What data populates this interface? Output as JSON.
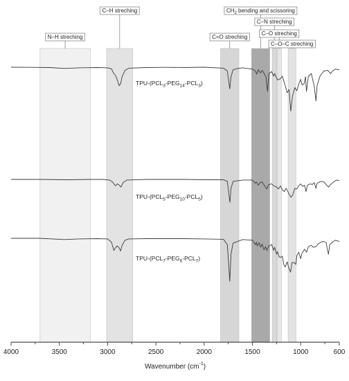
{
  "chart_data": {
    "type": "line",
    "xlabel": "Wavenumber (cm",
    "xlabel_superscript": "-1",
    "xlabel_close": ")",
    "xlim": [
      4000,
      600
    ],
    "x_reversed": true,
    "x_ticks": [
      4000,
      3500,
      3000,
      2500,
      2000,
      1500,
      1000,
      600
    ],
    "grid": false,
    "bands": [
      {
        "label": "N–H streching",
        "range": [
          3700,
          3180
        ],
        "shade": "#f1f1f1"
      },
      {
        "label": "C–H streching",
        "range": [
          3010,
          2740
        ],
        "shade": "#e3e3e3"
      },
      {
        "label": "C=O streching",
        "range": [
          1830,
          1640
        ],
        "shade": "#d6d6d6"
      },
      {
        "label_main": "CH",
        "label_sub": "2",
        "label_rest": " bending and scissoring",
        "range": [
          1510,
          1320
        ],
        "shade": "#a9a9a9"
      },
      {
        "label": "C–N streching",
        "range": [
          1295,
          1250
        ],
        "shade": "#d9d9d9"
      },
      {
        "label": "C–O streching",
        "range": [
          1245,
          1200
        ],
        "shade": "#e6e6e6"
      },
      {
        "label": "C–O–C streching",
        "range": [
          1130,
          1050
        ],
        "shade": "#e3e3e3"
      }
    ],
    "series": [
      {
        "name": "TPU-(PCL",
        "name_parts": [
          "TPU-(PCL",
          "3",
          "-PEG",
          "14",
          "-PCL",
          "3",
          ")"
        ],
        "baseline": 0,
        "points": [
          [
            4000,
            0
          ],
          [
            3800,
            0.5
          ],
          [
            3600,
            1
          ],
          [
            3450,
            4
          ],
          [
            3300,
            2
          ],
          [
            3100,
            1
          ],
          [
            3000,
            2
          ],
          [
            2960,
            5
          ],
          [
            2940,
            18
          ],
          [
            2920,
            25
          ],
          [
            2900,
            40
          ],
          [
            2880,
            58
          ],
          [
            2865,
            52
          ],
          [
            2850,
            30
          ],
          [
            2820,
            10
          ],
          [
            2780,
            3
          ],
          [
            2600,
            1
          ],
          [
            2400,
            0.5
          ],
          [
            2200,
            1
          ],
          [
            2000,
            0
          ],
          [
            1800,
            3
          ],
          [
            1760,
            12
          ],
          [
            1735,
            68
          ],
          [
            1722,
            30
          ],
          [
            1700,
            8
          ],
          [
            1650,
            4
          ],
          [
            1600,
            2
          ],
          [
            1500,
            6
          ],
          [
            1470,
            12
          ],
          [
            1455,
            22
          ],
          [
            1440,
            8
          ],
          [
            1415,
            18
          ],
          [
            1400,
            10
          ],
          [
            1390,
            14
          ],
          [
            1360,
            30
          ],
          [
            1343,
            76
          ],
          [
            1330,
            20
          ],
          [
            1300,
            14
          ],
          [
            1280,
            28
          ],
          [
            1270,
            20
          ],
          [
            1240,
            40
          ],
          [
            1210,
            36
          ],
          [
            1190,
            28
          ],
          [
            1160,
            58
          ],
          [
            1140,
            80
          ],
          [
            1120,
            70
          ],
          [
            1103,
            138
          ],
          [
            1085,
            90
          ],
          [
            1060,
            64
          ],
          [
            1040,
            74
          ],
          [
            1020,
            54
          ],
          [
            1000,
            38
          ],
          [
            985,
            56
          ],
          [
            965,
            52
          ],
          [
            950,
            30
          ],
          [
            940,
            76
          ],
          [
            920,
            28
          ],
          [
            890,
            20
          ],
          [
            860,
            60
          ],
          [
            842,
            106
          ],
          [
            830,
            58
          ],
          [
            800,
            28
          ],
          [
            760,
            12
          ],
          [
            720,
            10
          ],
          [
            690,
            20
          ],
          [
            670,
            12
          ],
          [
            640,
            6
          ],
          [
            600,
            8
          ]
        ]
      },
      {
        "name": "TPU-(PCL",
        "name_parts": [
          "TPU-(PCL",
          "5",
          "-PEG",
          "10",
          "-PCL",
          "5",
          ")"
        ],
        "baseline": 0,
        "points": [
          [
            4000,
            0
          ],
          [
            3700,
            0
          ],
          [
            3400,
            1
          ],
          [
            3200,
            0
          ],
          [
            3050,
            0
          ],
          [
            2980,
            2
          ],
          [
            2950,
            8
          ],
          [
            2930,
            16
          ],
          [
            2920,
            20
          ],
          [
            2900,
            14
          ],
          [
            2880,
            18
          ],
          [
            2862,
            24
          ],
          [
            2840,
            10
          ],
          [
            2800,
            2
          ],
          [
            2600,
            0
          ],
          [
            2200,
            0
          ],
          [
            2000,
            1
          ],
          [
            1800,
            1
          ],
          [
            1760,
            6
          ],
          [
            1733,
            72
          ],
          [
            1722,
            28
          ],
          [
            1700,
            6
          ],
          [
            1600,
            2
          ],
          [
            1500,
            2
          ],
          [
            1470,
            12
          ],
          [
            1460,
            8
          ],
          [
            1440,
            18
          ],
          [
            1420,
            10
          ],
          [
            1400,
            8
          ],
          [
            1370,
            22
          ],
          [
            1350,
            30
          ],
          [
            1330,
            16
          ],
          [
            1300,
            14
          ],
          [
            1280,
            20
          ],
          [
            1250,
            24
          ],
          [
            1230,
            30
          ],
          [
            1210,
            20
          ],
          [
            1190,
            32
          ],
          [
            1170,
            38
          ],
          [
            1150,
            28
          ],
          [
            1120,
            46
          ],
          [
            1100,
            56
          ],
          [
            1085,
            50
          ],
          [
            1060,
            28
          ],
          [
            1040,
            30
          ],
          [
            1020,
            20
          ],
          [
            1000,
            14
          ],
          [
            980,
            22
          ],
          [
            960,
            18
          ],
          [
            945,
            38
          ],
          [
            930,
            18
          ],
          [
            900,
            14
          ],
          [
            880,
            16
          ],
          [
            860,
            10
          ],
          [
            842,
            28
          ],
          [
            830,
            12
          ],
          [
            790,
            6
          ],
          [
            760,
            8
          ],
          [
            730,
            18
          ],
          [
            710,
            24
          ],
          [
            690,
            16
          ],
          [
            660,
            8
          ],
          [
            630,
            2
          ],
          [
            600,
            4
          ]
        ]
      },
      {
        "name": "TPU-(PCL",
        "name_parts": [
          "TPU-(PCL",
          "7",
          "-PEG",
          "6",
          "-PCL",
          "7",
          ")"
        ],
        "baseline": 0,
        "points": [
          [
            4000,
            0
          ],
          [
            3700,
            0
          ],
          [
            3450,
            4
          ],
          [
            3300,
            2
          ],
          [
            3100,
            1
          ],
          [
            3000,
            2
          ],
          [
            2960,
            12
          ],
          [
            2945,
            28
          ],
          [
            2935,
            38
          ],
          [
            2920,
            30
          ],
          [
            2900,
            24
          ],
          [
            2880,
            30
          ],
          [
            2866,
            40
          ],
          [
            2850,
            22
          ],
          [
            2820,
            6
          ],
          [
            2780,
            2
          ],
          [
            2600,
            1
          ],
          [
            2200,
            1
          ],
          [
            2000,
            2
          ],
          [
            1800,
            3
          ],
          [
            1760,
            20
          ],
          [
            1735,
            135
          ],
          [
            1722,
            50
          ],
          [
            1700,
            15
          ],
          [
            1600,
            4
          ],
          [
            1500,
            6
          ],
          [
            1470,
            20
          ],
          [
            1460,
            12
          ],
          [
            1450,
            24
          ],
          [
            1430,
            14
          ],
          [
            1415,
            28
          ],
          [
            1400,
            18
          ],
          [
            1380,
            36
          ],
          [
            1365,
            26
          ],
          [
            1350,
            38
          ],
          [
            1330,
            24
          ],
          [
            1300,
            20
          ],
          [
            1280,
            38
          ],
          [
            1270,
            28
          ],
          [
            1250,
            50
          ],
          [
            1240,
            42
          ],
          [
            1225,
            58
          ],
          [
            1210,
            60
          ],
          [
            1190,
            56
          ],
          [
            1175,
            82
          ],
          [
            1160,
            90
          ],
          [
            1140,
            74
          ],
          [
            1125,
            92
          ],
          [
            1105,
            106
          ],
          [
            1090,
            76
          ],
          [
            1070,
            76
          ],
          [
            1050,
            82
          ],
          [
            1040,
            54
          ],
          [
            1020,
            44
          ],
          [
            1000,
            64
          ],
          [
            985,
            46
          ],
          [
            960,
            34
          ],
          [
            940,
            44
          ],
          [
            920,
            26
          ],
          [
            890,
            22
          ],
          [
            870,
            28
          ],
          [
            842,
            26
          ],
          [
            820,
            18
          ],
          [
            790,
            12
          ],
          [
            760,
            10
          ],
          [
            735,
            14
          ],
          [
            725,
            34
          ],
          [
            712,
            50
          ],
          [
            700,
            20
          ],
          [
            670,
            12
          ],
          [
            640,
            6
          ],
          [
            600,
            10
          ]
        ]
      }
    ]
  }
}
